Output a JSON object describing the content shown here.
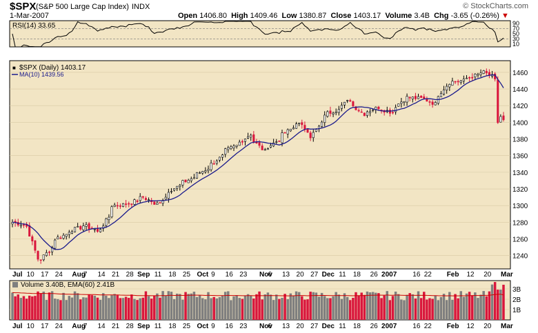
{
  "header": {
    "symbol": "$SPX",
    "description": "(S&P 500 Large Cap Index)",
    "exchange": "INDX",
    "date": "1-Mar-2007",
    "logo": "© StockCharts.com",
    "open_label": "Open",
    "open": "1406.80",
    "high_label": "High",
    "high": "1409.46",
    "low_label": "Low",
    "low": "1380.87",
    "close_label": "Close",
    "close": "1403.17",
    "volume_label": "Volume",
    "volume": "3.4B",
    "chg_label": "Chg",
    "chg": "-3.65 (-0.26%)",
    "chg_arrow": "▼"
  },
  "colors": {
    "panel_bg": "#f2e5c4",
    "up_candle": "#ffffff",
    "down_candle": "#d9163c",
    "ma_line": "#1a1a8c",
    "rsi_line": "#000000",
    "volume_up": "#7f7f7f",
    "volume_down": "#d9163c",
    "ema_line": "#cc0000"
  },
  "chart_data": {
    "type": "candlestick",
    "ticker": "$SPX",
    "period": "Daily",
    "legend": [
      {
        "label": "$SPX (Daily) 1403.17",
        "color": "#000000"
      },
      {
        "label": "MA(10) 1439.56",
        "color": "#1a1a8c"
      }
    ],
    "price_ticks": [
      1240,
      1260,
      1280,
      1300,
      1320,
      1340,
      1360,
      1380,
      1400,
      1420,
      1440,
      1460
    ],
    "price_range": [
      1224,
      1474
    ],
    "rsi": {
      "label": "RSI(14) 33.65",
      "ticks": [
        90,
        70,
        50,
        30,
        10
      ],
      "range": [
        0,
        100
      ],
      "levels": [
        70,
        30
      ],
      "last": 33.65
    },
    "volume": {
      "label": "Volume 3.40B, EMA(60) 2.41B",
      "ticks": [
        "3B",
        "2B",
        "1B"
      ],
      "range_billions": [
        0,
        3.8
      ],
      "ema": 2.41,
      "last": 3.4
    },
    "x_labels": [
      "Jul",
      "10",
      "17",
      "24",
      "Aug",
      "7",
      "14",
      "21",
      "28",
      "Sep",
      "11",
      "18",
      "25",
      "Oct",
      "9",
      "16",
      "23",
      "Nov",
      "6",
      "13",
      "20",
      "27",
      "Dec",
      "11",
      "18",
      "26",
      "2007",
      "16",
      "22",
      "Feb",
      "12",
      "20",
      "Mar"
    ],
    "anchors": [
      {
        "date": "2006-07-03",
        "close": 1280
      },
      {
        "date": "2006-07-10",
        "close": 1275
      },
      {
        "date": "2006-07-14",
        "close": 1236
      },
      {
        "date": "2006-07-17",
        "close": 1236
      },
      {
        "date": "2006-07-24",
        "close": 1260
      },
      {
        "date": "2006-08-01",
        "close": 1271
      },
      {
        "date": "2006-08-07",
        "close": 1276
      },
      {
        "date": "2006-08-14",
        "close": 1268
      },
      {
        "date": "2006-08-21",
        "close": 1300
      },
      {
        "date": "2006-08-28",
        "close": 1302
      },
      {
        "date": "2006-09-05",
        "close": 1310
      },
      {
        "date": "2006-09-11",
        "close": 1300
      },
      {
        "date": "2006-09-18",
        "close": 1318
      },
      {
        "date": "2006-09-25",
        "close": 1328
      },
      {
        "date": "2006-10-02",
        "close": 1338
      },
      {
        "date": "2006-10-09",
        "close": 1350
      },
      {
        "date": "2006-10-16",
        "close": 1366
      },
      {
        "date": "2006-10-23",
        "close": 1376
      },
      {
        "date": "2006-10-27",
        "close": 1386
      },
      {
        "date": "2006-11-03",
        "close": 1365
      },
      {
        "date": "2006-11-13",
        "close": 1385
      },
      {
        "date": "2006-11-20",
        "close": 1400
      },
      {
        "date": "2006-11-27",
        "close": 1383
      },
      {
        "date": "2006-12-04",
        "close": 1410
      },
      {
        "date": "2006-12-11",
        "close": 1418
      },
      {
        "date": "2006-12-15",
        "close": 1427
      },
      {
        "date": "2006-12-22",
        "close": 1410
      },
      {
        "date": "2006-12-29",
        "close": 1418
      },
      {
        "date": "2007-01-05",
        "close": 1412
      },
      {
        "date": "2007-01-12",
        "close": 1430
      },
      {
        "date": "2007-01-22",
        "close": 1428
      },
      {
        "date": "2007-01-26",
        "close": 1422
      },
      {
        "date": "2007-02-02",
        "close": 1448
      },
      {
        "date": "2007-02-09",
        "close": 1450
      },
      {
        "date": "2007-02-15",
        "close": 1456
      },
      {
        "date": "2007-02-20",
        "close": 1460
      },
      {
        "date": "2007-02-26",
        "close": 1450
      },
      {
        "date": "2007-02-27",
        "close": 1400
      },
      {
        "date": "2007-02-28",
        "close": 1407
      },
      {
        "date": "2007-03-01",
        "close": 1403
      }
    ]
  }
}
